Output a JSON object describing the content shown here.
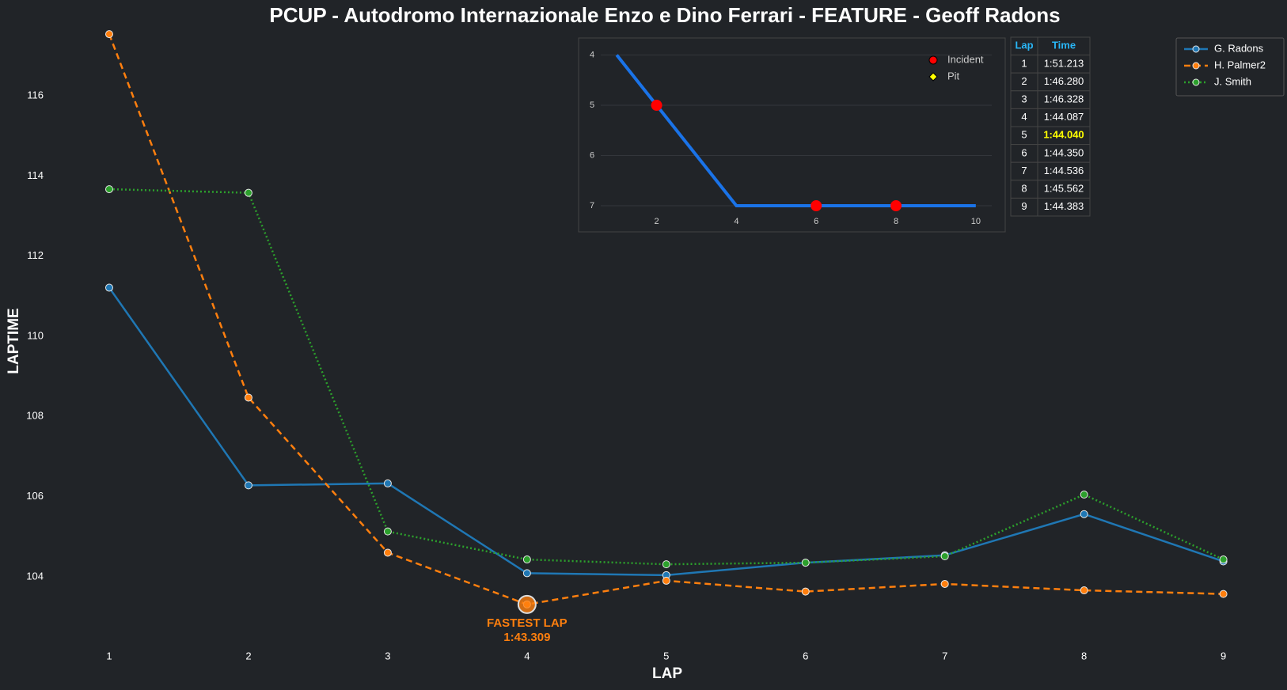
{
  "chart_data": [
    {
      "type": "line",
      "title": "PCUP - Autodromo Internazionale Enzo e Dino Ferrari - FEATURE - Geoff Radons",
      "x_label": "LAP",
      "y_label": "LAPTIME",
      "x": [
        1,
        2,
        3,
        4,
        5,
        6,
        7,
        8,
        9
      ],
      "xlim": [
        0.6,
        9.4
      ],
      "ylim": [
        102.2,
        117.7
      ],
      "xticks": [
        1,
        2,
        3,
        4,
        5,
        6,
        7,
        8,
        9
      ],
      "yticks": [
        104,
        106,
        108,
        110,
        112,
        114,
        116
      ],
      "legend": "upper right",
      "series": [
        {
          "name": "G. Radons",
          "color": "#1f77b4",
          "style": "solid",
          "values": [
            111.213,
            106.28,
            106.328,
            104.087,
            104.04,
            104.35,
            104.536,
            105.562,
            104.383
          ]
        },
        {
          "name": "H. Palmer2",
          "color": "#ff7f0e",
          "style": "dashed",
          "values": [
            117.54,
            108.47,
            104.6,
            103.309,
            103.9,
            103.63,
            103.82,
            103.66,
            103.57
          ]
        },
        {
          "name": "J. Smith",
          "color": "#2ca02c",
          "style": "dotted",
          "values": [
            113.67,
            113.58,
            105.13,
            104.43,
            104.31,
            104.35,
            104.51,
            106.05,
            104.43
          ]
        }
      ],
      "annotation": {
        "text": "FASTEST LAP",
        "value_label": "1:43.309"
      }
    },
    {
      "type": "line",
      "x": [
        1,
        2,
        3,
        4,
        5,
        6,
        7,
        8,
        9,
        10
      ],
      "values": [
        4,
        5,
        6,
        7,
        7,
        7,
        7,
        7,
        7,
        7
      ],
      "color": "#1a73e8",
      "xlim": [
        0.6,
        10.4
      ],
      "ylim": [
        3.7,
        7.2
      ],
      "y_inverted": true,
      "xticks": [
        2,
        4,
        6,
        8,
        10
      ],
      "yticks": [
        4,
        5,
        6,
        7
      ],
      "grid": true,
      "markers": [
        {
          "name": "Incident",
          "color": "#ff0000",
          "shape": "circle",
          "x": [
            2,
            6,
            8
          ],
          "y": [
            5,
            7,
            7
          ]
        },
        {
          "name": "Pit",
          "color": "#ffff00",
          "shape": "diamond",
          "x": [],
          "y": []
        }
      ]
    }
  ],
  "lap_table": {
    "columns": [
      "Lap",
      "Time"
    ],
    "highlight_row": 4,
    "rows": [
      [
        1,
        "1:51.213"
      ],
      [
        2,
        "1:46.280"
      ],
      [
        3,
        "1:46.328"
      ],
      [
        4,
        "1:44.087"
      ],
      [
        5,
        "1:44.040"
      ],
      [
        6,
        "1:44.350"
      ],
      [
        7,
        "1:44.536"
      ],
      [
        8,
        "1:45.562"
      ],
      [
        9,
        "1:44.383"
      ]
    ]
  }
}
